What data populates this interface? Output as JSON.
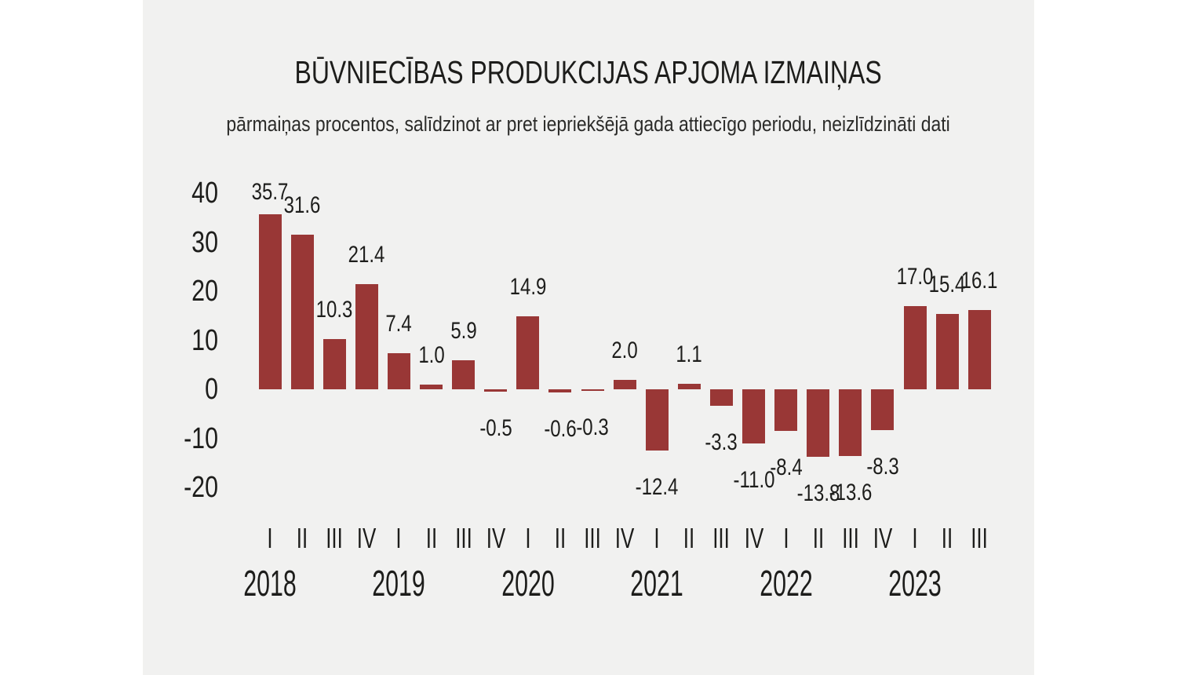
{
  "chart_data": {
    "type": "bar",
    "title": "BŪVNIECĪBAS PRODUKCIJAS APJOMA IZMAIŅAS",
    "subtitle": "pārmaiņas procentos, salīdzinot ar pret iepriekšējā gada attiecīgo periodu, neizlīdzināti dati",
    "xlabel": "",
    "ylabel": "",
    "ylim": [
      -20,
      40
    ],
    "y_ticks": [
      40,
      30,
      20,
      10,
      0,
      -10,
      -20
    ],
    "grid": false,
    "legend": false,
    "bar_color": "#993736",
    "background_color": "#f1f1f0",
    "text_color": "#1d1d1b",
    "years": [
      "2018",
      "2019",
      "2020",
      "2021",
      "2022",
      "2023"
    ],
    "categories": [
      "2018 I",
      "2018 II",
      "2018 III",
      "2018 IV",
      "2019 I",
      "2019 II",
      "2019 III",
      "2019 IV",
      "2020 I",
      "2020 II",
      "2020 III",
      "2020 IV",
      "2021 I",
      "2021 II",
      "2021 III",
      "2021 IV",
      "2022 I",
      "2022 II",
      "2022 III",
      "2022 IV",
      "2023 I",
      "2023 II",
      "2023 III"
    ],
    "values": [
      35.7,
      31.6,
      10.3,
      21.4,
      7.4,
      1.0,
      5.9,
      -0.5,
      14.9,
      -0.6,
      -0.3,
      2.0,
      -12.4,
      1.1,
      -3.3,
      -11.0,
      -8.4,
      -13.8,
      -13.6,
      -8.3,
      17.0,
      15.4,
      16.1
    ],
    "points": [
      {
        "year": "2018",
        "quarter": "I",
        "value": 35.7,
        "label": "35.7"
      },
      {
        "year": "2018",
        "quarter": "II",
        "value": 31.6,
        "label": "31.6"
      },
      {
        "year": "2018",
        "quarter": "III",
        "value": 10.3,
        "label": "10.3"
      },
      {
        "year": "2018",
        "quarter": "IV",
        "value": 21.4,
        "label": "21.4"
      },
      {
        "year": "2019",
        "quarter": "I",
        "value": 7.4,
        "label": "7.4"
      },
      {
        "year": "2019",
        "quarter": "II",
        "value": 1.0,
        "label": "1.0"
      },
      {
        "year": "2019",
        "quarter": "III",
        "value": 5.9,
        "label": "5.9"
      },
      {
        "year": "2019",
        "quarter": "IV",
        "value": -0.5,
        "label": "-0.5"
      },
      {
        "year": "2020",
        "quarter": "I",
        "value": 14.9,
        "label": "14.9"
      },
      {
        "year": "2020",
        "quarter": "II",
        "value": -0.6,
        "label": "-0.6"
      },
      {
        "year": "2020",
        "quarter": "III",
        "value": -0.3,
        "label": "-0.3"
      },
      {
        "year": "2020",
        "quarter": "IV",
        "value": 2.0,
        "label": "2.0"
      },
      {
        "year": "2021",
        "quarter": "I",
        "value": -12.4,
        "label": "-12.4"
      },
      {
        "year": "2021",
        "quarter": "II",
        "value": 1.1,
        "label": "1.1"
      },
      {
        "year": "2021",
        "quarter": "III",
        "value": -3.3,
        "label": "-3.3"
      },
      {
        "year": "2021",
        "quarter": "IV",
        "value": -11.0,
        "label": "-11.0"
      },
      {
        "year": "2022",
        "quarter": "I",
        "value": -8.4,
        "label": "-8.4"
      },
      {
        "year": "2022",
        "quarter": "II",
        "value": -13.8,
        "label": "-13.8"
      },
      {
        "year": "2022",
        "quarter": "III",
        "value": -13.6,
        "label": "-13.6"
      },
      {
        "year": "2022",
        "quarter": "IV",
        "value": -8.3,
        "label": "-8.3"
      },
      {
        "year": "2023",
        "quarter": "I",
        "value": 17.0,
        "label": "17.0"
      },
      {
        "year": "2023",
        "quarter": "II",
        "value": 15.4,
        "label": "15.4"
      },
      {
        "year": "2023",
        "quarter": "III",
        "value": 16.1,
        "label": "16.1"
      }
    ]
  }
}
